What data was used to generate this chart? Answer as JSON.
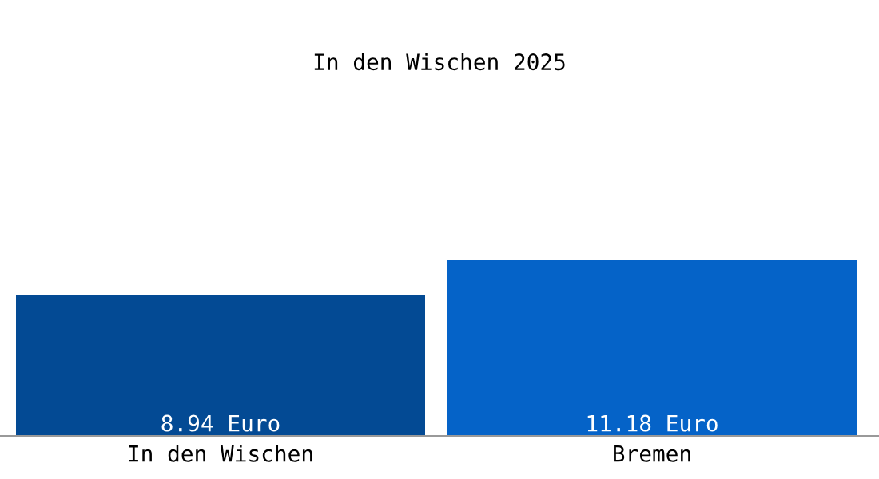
{
  "chart_data": {
    "type": "bar",
    "title": "In den Wischen 2025",
    "categories": [
      "In den Wischen",
      "Bremen"
    ],
    "values": [
      8.94,
      11.18
    ],
    "colors": [
      "#034a94",
      "#0563c8"
    ],
    "value_labels": [
      "8.94 Euro",
      "11.18 Euro"
    ],
    "grid": false,
    "legend": false
  }
}
